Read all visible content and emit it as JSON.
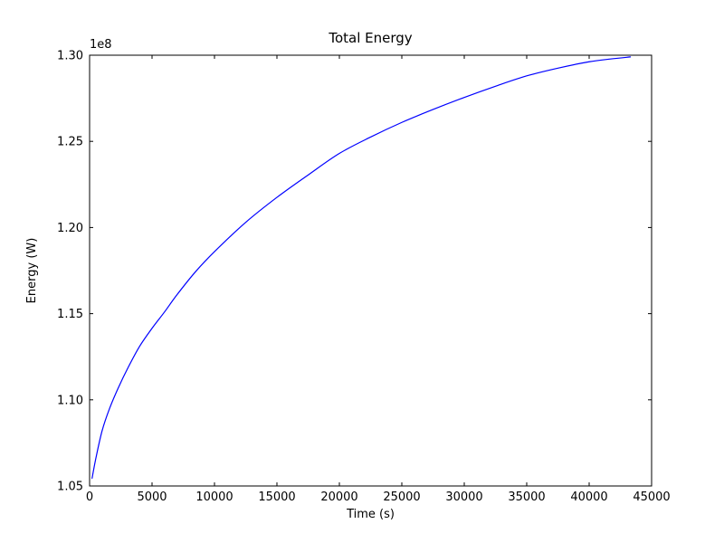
{
  "chart_data": {
    "type": "line",
    "title": "Total Energy",
    "xlabel": "Time (s)",
    "ylabel": "Energy (W)",
    "y_offset_label": "1e8",
    "xlim": [
      0,
      45000
    ],
    "ylim": [
      105000000,
      130000000
    ],
    "x_ticks": [
      0,
      5000,
      10000,
      15000,
      20000,
      25000,
      30000,
      35000,
      40000,
      45000
    ],
    "x_tick_labels": [
      "0",
      "5000",
      "10000",
      "15000",
      "20000",
      "25000",
      "30000",
      "35000",
      "40000",
      "45000"
    ],
    "y_ticks": [
      105000000,
      110000000,
      115000000,
      120000000,
      125000000,
      130000000
    ],
    "y_tick_labels": [
      "1.05",
      "1.10",
      "1.15",
      "1.20",
      "1.25",
      "1.30"
    ],
    "grid": false,
    "tick_direction": "in",
    "line_color": "#0000ff",
    "series": [
      {
        "name": "Total Energy",
        "color": "#0000ff",
        "x": [
          200,
          500,
          1000,
          1600,
          2300,
          3100,
          4000,
          5000,
          6000,
          7000,
          8500,
          10000,
          12500,
          15000,
          17500,
          20000,
          22500,
          25000,
          27500,
          30000,
          32500,
          35000,
          37500,
          40000,
          41700,
          43300
        ],
        "y": [
          105450000,
          106600000,
          108200000,
          109500000,
          110700000,
          111900000,
          113100000,
          114150000,
          115100000,
          116100000,
          117450000,
          118600000,
          120300000,
          121750000,
          123050000,
          124300000,
          125250000,
          126100000,
          126850000,
          127550000,
          128200000,
          128800000,
          129250000,
          129620000,
          129780000,
          129900000
        ]
      }
    ]
  }
}
